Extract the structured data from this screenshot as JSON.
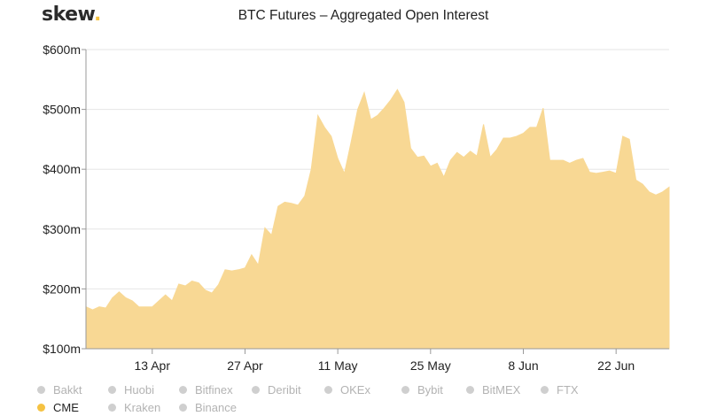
{
  "header": {
    "logo_text": "skew",
    "logo_dot": ".",
    "title": "BTC Futures – Aggregated Open Interest"
  },
  "colors": {
    "area_fill": "#f8d894",
    "active_dot": "#f5c242",
    "inactive_dot": "#cfcfcf",
    "grid": "#e6e6e6"
  },
  "legend": {
    "rows": [
      [
        {
          "label": "Bakkt",
          "active": false
        },
        {
          "label": "Huobi",
          "active": false
        },
        {
          "label": "Bitfinex",
          "active": false
        },
        {
          "label": "Deribit",
          "active": false
        },
        {
          "label": "OKEx",
          "active": false
        },
        {
          "label": "Bybit",
          "active": false
        },
        {
          "label": "BitMEX",
          "active": false
        },
        {
          "label": "FTX",
          "active": false
        }
      ],
      [
        {
          "label": "CME",
          "active": true
        },
        {
          "label": "Kraken",
          "active": false
        },
        {
          "label": "Binance",
          "active": false
        }
      ]
    ]
  },
  "chart_data": {
    "type": "area",
    "title": "BTC Futures – Aggregated Open Interest",
    "xlabel": "",
    "ylabel": "",
    "ylim": [
      100,
      600
    ],
    "y_unit": "m",
    "y_ticks": [
      100,
      200,
      300,
      400,
      500,
      600
    ],
    "y_tick_labels": [
      "$100m",
      "$200m",
      "$300m",
      "$400m",
      "$500m",
      "$600m"
    ],
    "x_ticks": [
      "2020-04-13",
      "2020-04-27",
      "2020-05-11",
      "2020-05-25",
      "2020-06-08",
      "2020-06-22"
    ],
    "x_tick_labels": [
      "13 Apr",
      "27 Apr",
      "11 May",
      "25 May",
      "8 Jun",
      "22 Jun"
    ],
    "xlim": [
      "2020-04-03",
      "2020-06-30"
    ],
    "grid": "horizontal",
    "legend_position": "bottom-left",
    "series": [
      {
        "name": "CME",
        "points": [
          [
            "2020-04-03",
            170
          ],
          [
            "2020-04-04",
            165
          ],
          [
            "2020-04-05",
            170
          ],
          [
            "2020-04-06",
            168
          ],
          [
            "2020-04-07",
            185
          ],
          [
            "2020-04-08",
            195
          ],
          [
            "2020-04-09",
            185
          ],
          [
            "2020-04-10",
            180
          ],
          [
            "2020-04-11",
            170
          ],
          [
            "2020-04-12",
            170
          ],
          [
            "2020-04-13",
            170
          ],
          [
            "2020-04-14",
            180
          ],
          [
            "2020-04-15",
            190
          ],
          [
            "2020-04-16",
            180
          ],
          [
            "2020-04-17",
            208
          ],
          [
            "2020-04-18",
            205
          ],
          [
            "2020-04-19",
            213
          ],
          [
            "2020-04-20",
            210
          ],
          [
            "2020-04-21",
            198
          ],
          [
            "2020-04-22",
            193
          ],
          [
            "2020-04-23",
            207
          ],
          [
            "2020-04-24",
            232
          ],
          [
            "2020-04-25",
            230
          ],
          [
            "2020-04-26",
            232
          ],
          [
            "2020-04-27",
            235
          ],
          [
            "2020-04-28",
            257
          ],
          [
            "2020-04-29",
            240
          ],
          [
            "2020-04-30",
            302
          ],
          [
            "2020-05-01",
            290
          ],
          [
            "2020-05-02",
            338
          ],
          [
            "2020-05-03",
            345
          ],
          [
            "2020-05-04",
            343
          ],
          [
            "2020-05-05",
            340
          ],
          [
            "2020-05-06",
            355
          ],
          [
            "2020-05-07",
            400
          ],
          [
            "2020-05-08",
            490
          ],
          [
            "2020-05-09",
            470
          ],
          [
            "2020-05-10",
            455
          ],
          [
            "2020-05-11",
            418
          ],
          [
            "2020-05-12",
            393
          ],
          [
            "2020-05-13",
            445
          ],
          [
            "2020-05-14",
            500
          ],
          [
            "2020-05-15",
            528
          ],
          [
            "2020-05-16",
            483
          ],
          [
            "2020-05-17",
            490
          ],
          [
            "2020-05-18",
            502
          ],
          [
            "2020-05-19",
            516
          ],
          [
            "2020-05-20",
            533
          ],
          [
            "2020-05-21",
            512
          ],
          [
            "2020-05-22",
            435
          ],
          [
            "2020-05-23",
            420
          ],
          [
            "2020-05-24",
            422
          ],
          [
            "2020-05-25",
            405
          ],
          [
            "2020-05-26",
            410
          ],
          [
            "2020-05-27",
            387
          ],
          [
            "2020-05-28",
            415
          ],
          [
            "2020-05-29",
            428
          ],
          [
            "2020-05-30",
            420
          ],
          [
            "2020-05-31",
            430
          ],
          [
            "2020-06-01",
            422
          ],
          [
            "2020-06-02",
            475
          ],
          [
            "2020-06-03",
            420
          ],
          [
            "2020-06-04",
            433
          ],
          [
            "2020-06-05",
            452
          ],
          [
            "2020-06-06",
            452
          ],
          [
            "2020-06-07",
            455
          ],
          [
            "2020-06-08",
            460
          ],
          [
            "2020-06-09",
            470
          ],
          [
            "2020-06-10",
            470
          ],
          [
            "2020-06-11",
            502
          ],
          [
            "2020-06-12",
            415
          ],
          [
            "2020-06-13",
            415
          ],
          [
            "2020-06-14",
            415
          ],
          [
            "2020-06-15",
            410
          ],
          [
            "2020-06-16",
            415
          ],
          [
            "2020-06-17",
            418
          ],
          [
            "2020-06-18",
            395
          ],
          [
            "2020-06-19",
            393
          ],
          [
            "2020-06-20",
            395
          ],
          [
            "2020-06-21",
            397
          ],
          [
            "2020-06-22",
            393
          ],
          [
            "2020-06-23",
            455
          ],
          [
            "2020-06-24",
            450
          ],
          [
            "2020-06-25",
            382
          ],
          [
            "2020-06-26",
            375
          ],
          [
            "2020-06-27",
            362
          ],
          [
            "2020-06-28",
            357
          ],
          [
            "2020-06-29",
            362
          ],
          [
            "2020-06-30",
            370
          ]
        ]
      }
    ]
  }
}
